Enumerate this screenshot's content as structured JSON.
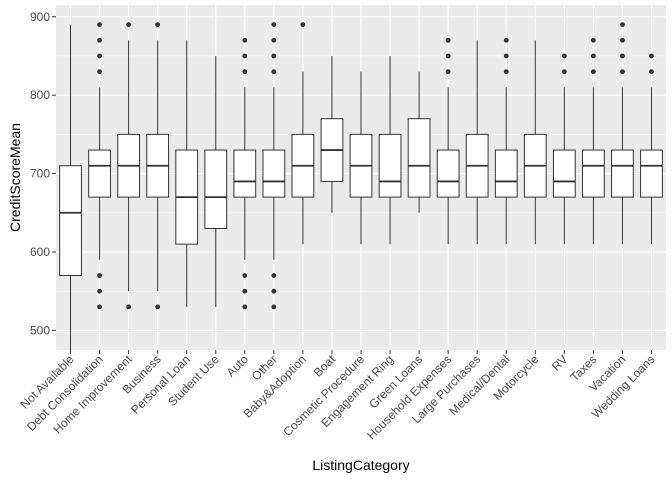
{
  "chart_data": {
    "type": "boxplot",
    "xlabel": "ListingCategory",
    "ylabel": "CreditScoreMean",
    "ylim": [
      475,
      915
    ],
    "yticks": [
      500,
      600,
      700,
      800,
      900
    ],
    "grid": true,
    "colors": {
      "panel": "#ebebeb",
      "grid_major": "#ffffff",
      "box_fill": "#ffffff",
      "line": "#333333",
      "outlier": "#333333"
    },
    "categories": [
      "Not Available",
      "Debt Consolidation",
      "Home Improvement",
      "Business",
      "Personal Loan",
      "Student Use",
      "Auto",
      "Other",
      "Baby&Adoption",
      "Boat",
      "Cosmetic Procedure",
      "Engagement Ring",
      "Green Loans",
      "Household Expenses",
      "Large Purchases",
      "Medical/Dental",
      "Motorcycle",
      "RV",
      "Taxes",
      "Vacation",
      "Wedding Loans"
    ],
    "boxes": [
      {
        "whisker_low": 475,
        "q1": 570,
        "median": 650,
        "q3": 710,
        "whisker_high": 890,
        "outliers": []
      },
      {
        "whisker_low": 590,
        "q1": 670,
        "median": 710,
        "q3": 730,
        "whisker_high": 810,
        "outliers": [
          530,
          550,
          570,
          830,
          850,
          870,
          890
        ]
      },
      {
        "whisker_low": 550,
        "q1": 670,
        "median": 710,
        "q3": 750,
        "whisker_high": 870,
        "outliers": [
          530,
          890
        ]
      },
      {
        "whisker_low": 550,
        "q1": 670,
        "median": 710,
        "q3": 750,
        "whisker_high": 870,
        "outliers": [
          530,
          890
        ]
      },
      {
        "whisker_low": 530,
        "q1": 610,
        "median": 670,
        "q3": 730,
        "whisker_high": 870,
        "outliers": []
      },
      {
        "whisker_low": 530,
        "q1": 630,
        "median": 670,
        "q3": 730,
        "whisker_high": 850,
        "outliers": []
      },
      {
        "whisker_low": 590,
        "q1": 670,
        "median": 690,
        "q3": 730,
        "whisker_high": 810,
        "outliers": [
          530,
          550,
          570,
          830,
          850,
          870
        ]
      },
      {
        "whisker_low": 590,
        "q1": 670,
        "median": 690,
        "q3": 730,
        "whisker_high": 810,
        "outliers": [
          530,
          550,
          570,
          830,
          850,
          870,
          890
        ]
      },
      {
        "whisker_low": 610,
        "q1": 670,
        "median": 710,
        "q3": 750,
        "whisker_high": 830,
        "outliers": [
          890
        ]
      },
      {
        "whisker_low": 650,
        "q1": 690,
        "median": 730,
        "q3": 770,
        "whisker_high": 850,
        "outliers": []
      },
      {
        "whisker_low": 610,
        "q1": 670,
        "median": 710,
        "q3": 750,
        "whisker_high": 830,
        "outliers": []
      },
      {
        "whisker_low": 610,
        "q1": 670,
        "median": 690,
        "q3": 750,
        "whisker_high": 850,
        "outliers": []
      },
      {
        "whisker_low": 650,
        "q1": 670,
        "median": 710,
        "q3": 770,
        "whisker_high": 830,
        "outliers": []
      },
      {
        "whisker_low": 610,
        "q1": 670,
        "median": 690,
        "q3": 730,
        "whisker_high": 810,
        "outliers": [
          830,
          850,
          870
        ]
      },
      {
        "whisker_low": 610,
        "q1": 670,
        "median": 710,
        "q3": 750,
        "whisker_high": 870,
        "outliers": []
      },
      {
        "whisker_low": 610,
        "q1": 670,
        "median": 690,
        "q3": 730,
        "whisker_high": 810,
        "outliers": [
          830,
          850,
          870
        ]
      },
      {
        "whisker_low": 610,
        "q1": 670,
        "median": 710,
        "q3": 750,
        "whisker_high": 870,
        "outliers": []
      },
      {
        "whisker_low": 610,
        "q1": 670,
        "median": 690,
        "q3": 730,
        "whisker_high": 810,
        "outliers": [
          830,
          850
        ]
      },
      {
        "whisker_low": 610,
        "q1": 670,
        "median": 710,
        "q3": 730,
        "whisker_high": 810,
        "outliers": [
          830,
          850,
          870
        ]
      },
      {
        "whisker_low": 610,
        "q1": 670,
        "median": 710,
        "q3": 730,
        "whisker_high": 810,
        "outliers": [
          830,
          850,
          870,
          890
        ]
      },
      {
        "whisker_low": 610,
        "q1": 670,
        "median": 710,
        "q3": 730,
        "whisker_high": 810,
        "outliers": [
          830,
          850
        ]
      }
    ]
  }
}
